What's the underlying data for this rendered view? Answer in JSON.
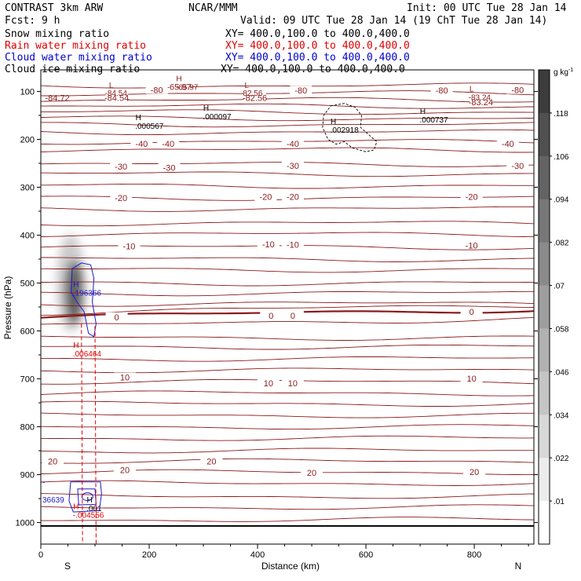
{
  "header": {
    "model": "CONTRAST  3km ARW",
    "center": "NCAR/MMM",
    "init": "Init: 00 UTC Tue 28 Jan 14",
    "fcst": "Fcst:   9 h",
    "valid": "Valid: 09 UTC Tue 28 Jan 14 (19 ChT Tue 28 Jan 14)"
  },
  "fields": [
    {
      "name": "Snow mixing ratio",
      "xy": "XY= 400.0,100.0 to 400.0,400.0",
      "color": "#000000"
    },
    {
      "name": "Rain water mixing ratio",
      "xy": "XY= 400.0,100.0 to 400.0,400.0",
      "color": "#e00000"
    },
    {
      "name": "Cloud water mixing ratio",
      "xy": "XY= 400.0,100.0 to 400.0,400.0",
      "color": "#0000cc"
    },
    {
      "name": "Cloud ice mixing ratio",
      "xy": "XY= 400.0,100.0 to 400.0,400.0",
      "color": "#000000"
    }
  ],
  "colors": {
    "temperature": "#8b1a1a",
    "rain": "#e00000",
    "cloud_water": "#1a1acc",
    "cloud_ice": "#000000",
    "snow_shade": "#6a6a6a"
  },
  "chart_data": {
    "type": "cross-section",
    "xlabel": "Distance (km)",
    "ylabel": "Pressure (hPa)",
    "xlim": [
      0,
      910
    ],
    "ylim": [
      1045,
      55
    ],
    "xticks": [
      "0",
      "200",
      "400",
      "600",
      "800"
    ],
    "yticks": [
      "100",
      "200",
      "300",
      "400",
      "500",
      "600",
      "700",
      "800",
      "900",
      "1000"
    ],
    "x_endpoints": [
      "S",
      "N"
    ],
    "colorbar": {
      "unit": "g kg",
      "unit_exp": "-1",
      "ticks": [
        ".118",
        ".106",
        ".094",
        ".082",
        ".07",
        ".058",
        ".046",
        ".034",
        ".022",
        ".01"
      ]
    },
    "temperature_labels": [
      "-84.72",
      "-84.54",
      "-65.97",
      "-82.56",
      "-80",
      "-83.24",
      "-40",
      "-30",
      "-20",
      "-10",
      "0",
      "10",
      "20"
    ],
    "extrema": [
      {
        "type": "L",
        "value": "-84.54",
        "x": 130,
        "p": 93
      },
      {
        "type": "L",
        "value": "-82.56",
        "x": 380,
        "p": 93
      },
      {
        "type": "L",
        "value": "-83.24",
        "x": 795,
        "p": 100
      },
      {
        "type": "H",
        "value": "-65.97",
        "x": 255,
        "p": 79
      },
      {
        "type": "H",
        "value": ".000567",
        "x": 180,
        "p": 160
      },
      {
        "type": "H",
        "value": ".000097",
        "x": 305,
        "p": 140
      },
      {
        "type": "H",
        "value": ".002918",
        "x": 540,
        "p": 168
      },
      {
        "type": "H",
        "value": ".000737",
        "x": 705,
        "p": 147
      },
      {
        "type": "H",
        "value": ".196366",
        "x": 65,
        "p": 508
      },
      {
        "type": "H",
        "value": ".006464",
        "x": 65,
        "p": 635
      },
      {
        "type": "H",
        "value": "-.004556",
        "x": 65,
        "p": 972
      },
      {
        "type": "H",
        "value": ".001",
        "x": 90,
        "p": 958
      }
    ],
    "edge_labels": [
      "-84.72",
      "36639"
    ]
  }
}
